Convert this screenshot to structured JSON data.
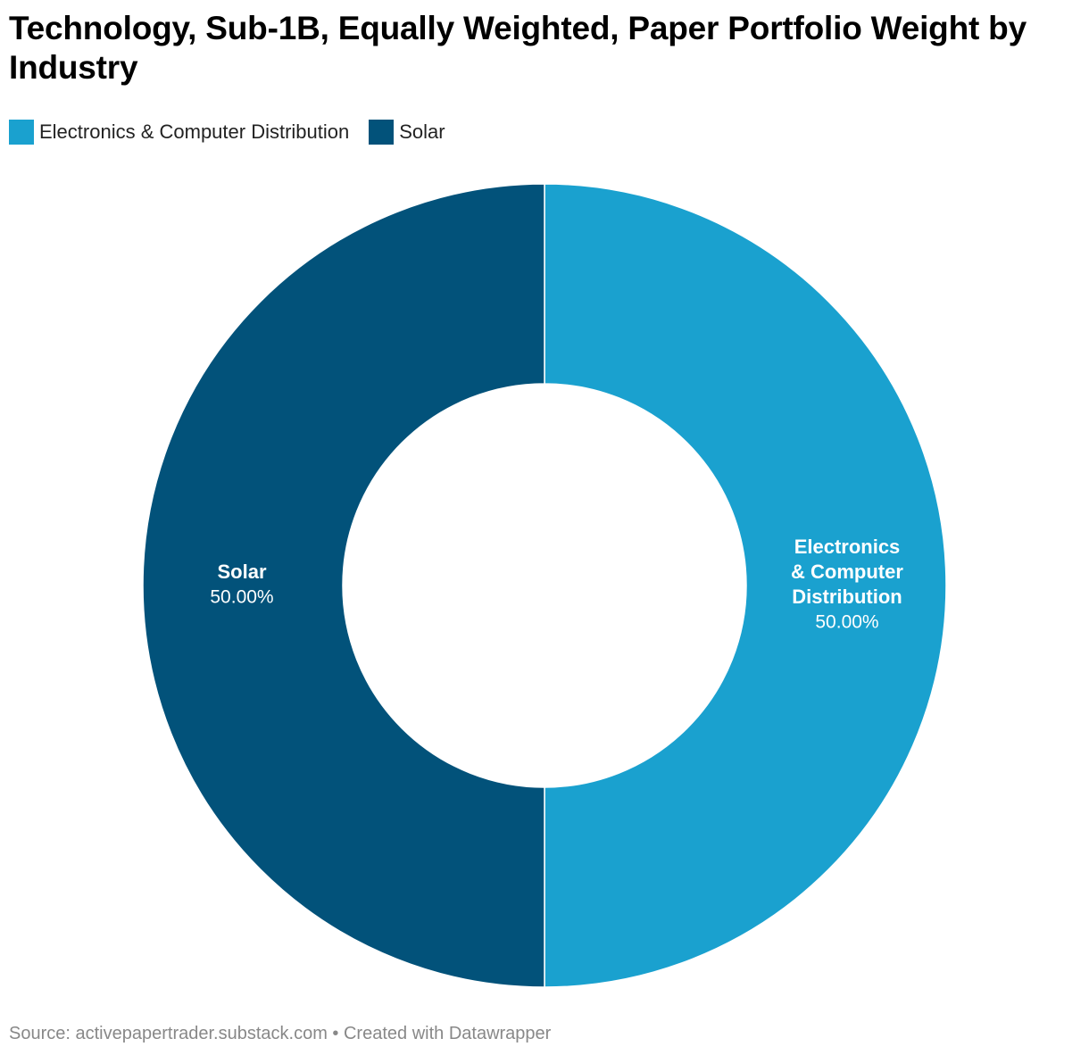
{
  "title": "Technology, Sub-1B, Equally Weighted, Paper Portfolio Weight by Industry",
  "footer": {
    "source_label": "Source: ",
    "source": "activepapertrader.substack.com",
    "separator": " • ",
    "credit": "Created with Datawrapper"
  },
  "colors": {
    "electronics": "#1aa1cf",
    "solar": "#02527a"
  },
  "chart_data": {
    "type": "pie",
    "variant": "donut",
    "title": "Technology, Sub-1B, Equally Weighted, Paper Portfolio Weight by Industry",
    "legend": [
      "Electronics & Computer Distribution",
      "Solar"
    ],
    "slices": [
      {
        "name": "Electronics & Computer Distribution",
        "label_lines": [
          "Electronics",
          "& Computer",
          "Distribution"
        ],
        "value": 50.0,
        "value_label": "50.00%",
        "color": "#1aa1cf"
      },
      {
        "name": "Solar",
        "label_lines": [
          "Solar"
        ],
        "value": 50.0,
        "value_label": "50.00%",
        "color": "#02527a"
      }
    ]
  }
}
